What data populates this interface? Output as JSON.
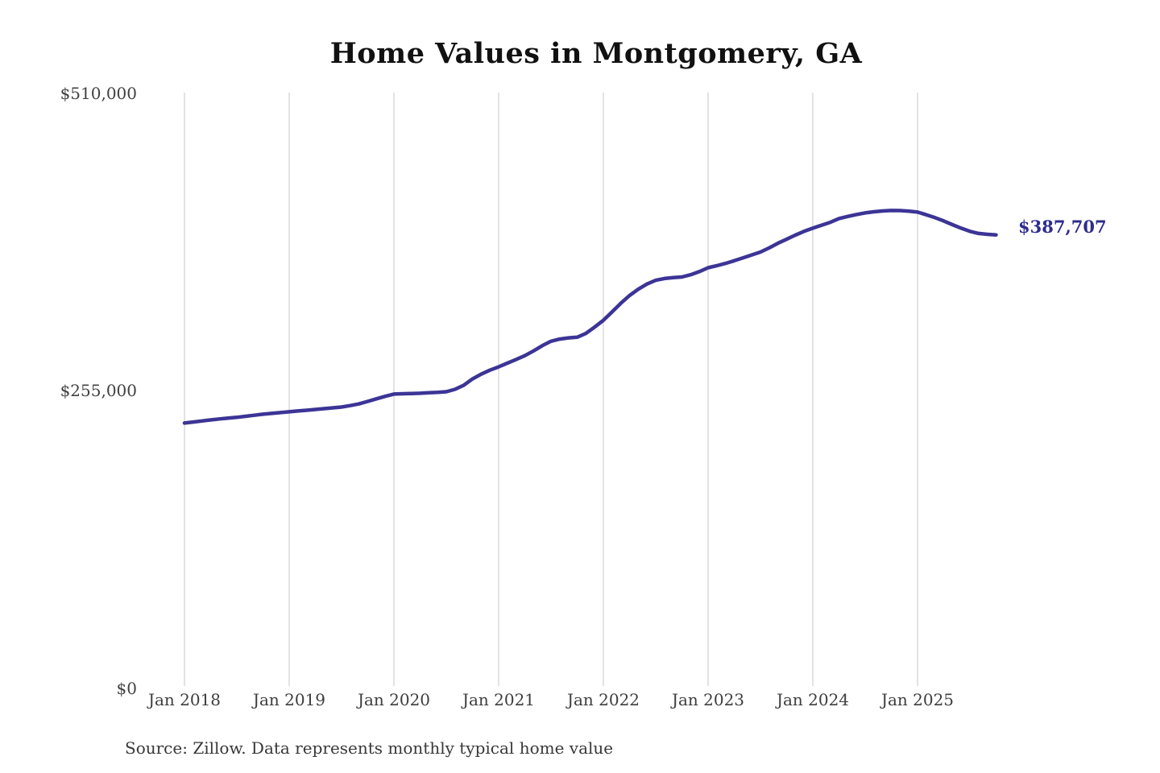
{
  "title": "Home Values in Montgomery, GA",
  "source_note": "Source: Zillow. Data represents monthly typical home value",
  "chart_data": {
    "type": "line",
    "title": "Home Values in Montgomery, GA",
    "series_name": "Monthly typical home value",
    "xlabel": "",
    "ylabel": "",
    "ylim": [
      0,
      510000
    ],
    "grid": "vertical-only",
    "legend": "none",
    "x_tick_labels": [
      "Jan 2018",
      "Jan 2019",
      "Jan 2020",
      "Jan 2021",
      "Jan 2022",
      "Jan 2023",
      "Jan 2024",
      "Jan 2025"
    ],
    "y_tick_labels": [
      "$510,000",
      "$255,000",
      "$0"
    ],
    "x_monthly_start": "Jan 2018",
    "x_monthly_end": "Oct 2025",
    "values": [
      226000,
      226900,
      227800,
      228700,
      229500,
      230200,
      230900,
      231800,
      232700,
      233600,
      234300,
      235000,
      235700,
      236400,
      237000,
      237700,
      238400,
      239100,
      239800,
      241000,
      242500,
      244600,
      246800,
      249000,
      250900,
      251200,
      251400,
      251600,
      252000,
      252400,
      252900,
      255000,
      258500,
      263900,
      268000,
      271500,
      274300,
      277500,
      280700,
      283900,
      288000,
      292500,
      296300,
      298200,
      299200,
      299800,
      303000,
      308500,
      314300,
      321500,
      329000,
      335600,
      341000,
      345500,
      348700,
      350200,
      351000,
      351500,
      353500,
      356200,
      359500,
      361200,
      363200,
      365500,
      368000,
      370500,
      373000,
      376500,
      380500,
      384000,
      387500,
      390800,
      393500,
      396000,
      398500,
      401800,
      403600,
      405200,
      406600,
      407600,
      408300,
      408700,
      408600,
      408100,
      407300,
      405000,
      402500,
      399700,
      396500,
      393500,
      390800,
      389000,
      388200,
      387707
    ],
    "final_value": 387707,
    "annotation": {
      "text": "$387,707",
      "color": "#2e2c8e"
    },
    "line_color": "#3c3496",
    "gridline_color": "#c7c7c7"
  }
}
